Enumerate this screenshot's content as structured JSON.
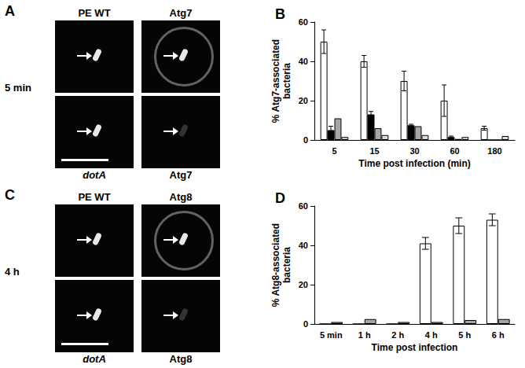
{
  "image_panels": [
    {
      "label": "A",
      "time": "5 min",
      "rows": [
        {
          "strain": "PE WT",
          "stain": "Atg7"
        },
        {
          "strain": "dotA",
          "stain": "Atg7"
        }
      ]
    },
    {
      "label": "C",
      "time": "4 h",
      "rows": [
        {
          "strain": "PE WT",
          "stain": "Atg8"
        },
        {
          "strain": "dotA",
          "stain": "Atg8"
        }
      ]
    }
  ],
  "chart_data": [
    {
      "type": "bar",
      "title": "B",
      "x_label": "Time post infection (min)",
      "y_label": "% Atg7-associated\nbacteria",
      "categories": [
        "5",
        "15",
        "30",
        "60",
        "180"
      ],
      "ylim": [
        0,
        60
      ],
      "yticks": [
        0,
        20,
        40,
        60
      ],
      "grid": false,
      "series": [
        {
          "color": "#ffffff",
          "values": [
            50,
            40,
            30,
            20,
            6
          ],
          "errors": [
            6,
            3,
            5,
            8,
            1
          ]
        },
        {
          "color": "#000000",
          "values": [
            5,
            13,
            7.5,
            1.5,
            0
          ],
          "errors": [
            2,
            1.5,
            0.5,
            0.5,
            null
          ]
        },
        {
          "color": "#a6a6a6",
          "values": [
            11,
            6,
            7,
            0.5,
            0
          ],
          "errors": [
            null,
            null,
            null,
            null,
            null
          ]
        },
        {
          "color": "#dcdcdc",
          "values": [
            1.5,
            2.5,
            2.5,
            1.5,
            2
          ],
          "errors": [
            null,
            null,
            null,
            null,
            null
          ]
        }
      ]
    },
    {
      "type": "bar",
      "title": "D",
      "x_label": "Time post infection",
      "y_label": "% Atg8-associated\nbacteria",
      "categories": [
        "5 min",
        "1 h",
        "2 h",
        "4 h",
        "5 h",
        "6 h"
      ],
      "ylim": [
        0,
        60
      ],
      "yticks": [
        0,
        20,
        40,
        60
      ],
      "grid": false,
      "series": [
        {
          "color": "#ffffff",
          "values": [
            0,
            0,
            0,
            41,
            50,
            53
          ],
          "errors": [
            null,
            null,
            null,
            3,
            4,
            3
          ]
        },
        {
          "color": "#a6a6a6",
          "values": [
            1,
            2.5,
            1,
            1,
            2,
            2.5
          ],
          "errors": [
            null,
            null,
            null,
            null,
            null,
            null
          ]
        }
      ]
    }
  ]
}
